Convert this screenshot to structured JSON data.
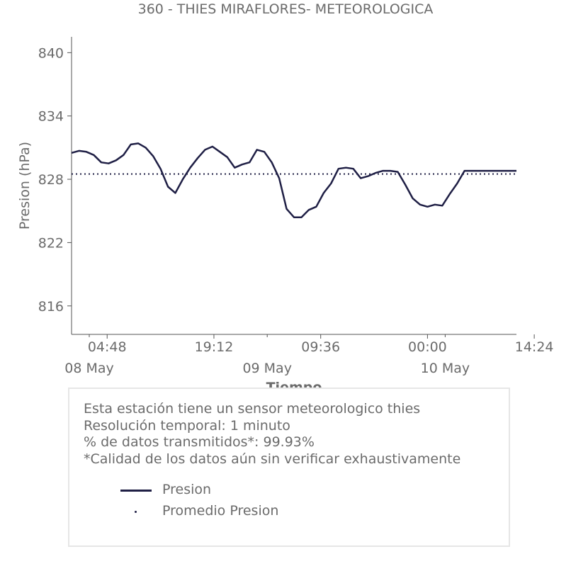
{
  "chart_data": {
    "type": "line",
    "title": "360 - THIES MIRAFLORES- METEOROLOGICA",
    "xlabel": "Tiempo",
    "ylabel": "Presion (hPa)",
    "ylim": [
      813.3,
      841.5
    ],
    "yticks": [
      816,
      822,
      828,
      834,
      840
    ],
    "x_range_hours": [
      0,
      60
    ],
    "xtick_hours": [
      4.8,
      19.2,
      33.6,
      48,
      62.4
    ],
    "xtick_labels": [
      "04:48",
      "19:12",
      "09:36",
      "00:00",
      "14:24"
    ],
    "date_tick_hours": [
      0,
      24,
      48
    ],
    "date_labels": [
      "08 May",
      "09 May",
      "10 May"
    ],
    "grid": false,
    "series": [
      {
        "name": "Presion",
        "color": "#1f1f45",
        "style": "solid",
        "x": [
          0,
          1,
          2,
          3,
          4,
          5,
          6,
          7,
          8,
          9,
          10,
          11,
          12,
          13,
          14,
          15,
          16,
          17,
          18,
          19,
          20,
          21,
          22,
          23,
          24,
          25,
          26,
          27,
          28,
          29,
          30,
          31,
          32,
          33,
          34,
          35,
          36,
          37,
          38,
          39,
          40,
          41,
          42,
          43,
          44,
          45,
          46,
          47,
          48,
          49,
          50,
          51,
          52,
          53,
          54,
          55,
          56,
          57,
          58,
          59,
          60
        ],
        "y": [
          830.5,
          830.7,
          830.6,
          830.3,
          829.6,
          829.5,
          829.8,
          830.3,
          831.3,
          831.4,
          831.0,
          830.2,
          829.0,
          827.3,
          826.7,
          828.0,
          829.1,
          830.0,
          830.8,
          831.1,
          830.6,
          830.1,
          829.1,
          829.4,
          829.6,
          830.8,
          830.6,
          829.6,
          828.1,
          825.2,
          824.4,
          824.4,
          825.1,
          825.4,
          826.7,
          827.6,
          829.0,
          829.1,
          829.0,
          828.1,
          828.3,
          828.6,
          828.8,
          828.8,
          828.7,
          827.5,
          826.2,
          825.6,
          825.4,
          825.6,
          825.5,
          826.6,
          827.6,
          828.8,
          828.8,
          828.8,
          828.8,
          828.8,
          828.8,
          828.8,
          828.8
        ]
      },
      {
        "name": "Promedio Presion",
        "color": "#1f1f45",
        "style": "dotted",
        "x": [
          0,
          60
        ],
        "y": [
          828.5,
          828.5
        ]
      }
    ]
  },
  "info": {
    "line1": "Esta estación tiene un sensor meteorologico thies",
    "line2": "Resolución temporal: 1 minuto",
    "line3": "% de datos transmitidos*: 99.93%",
    "line4": "*Calidad de los datos aún sin verificar exhaustivamente"
  },
  "legend": {
    "item1": "Presion",
    "item2": "Promedio Presion"
  },
  "colors": {
    "series": "#1f1f45",
    "text": "#6b6b6b",
    "axis": "#555555",
    "box_border": "#e6e6e6"
  }
}
